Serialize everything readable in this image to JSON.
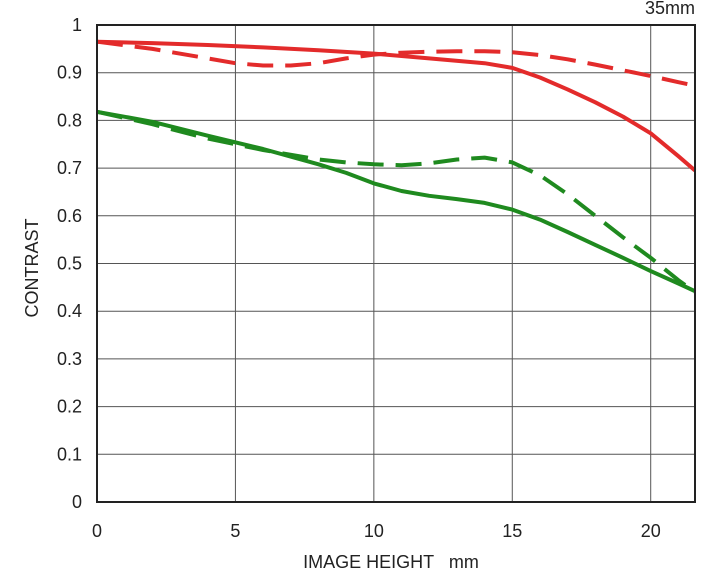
{
  "chart_data": {
    "type": "line",
    "title": "35mm",
    "xlabel": "IMAGE HEIGHT   mm",
    "ylabel": "CONTRAST",
    "xlim": [
      0,
      21.6
    ],
    "ylim": [
      0,
      1
    ],
    "x_ticks": [
      0,
      5,
      10,
      15,
      20
    ],
    "y_ticks": [
      0,
      0.1,
      0.2,
      0.3,
      0.4,
      0.5,
      0.6,
      0.7,
      0.8,
      0.9,
      1
    ],
    "y_tick_labels": [
      "0",
      "0.1",
      "0.2",
      "0.3",
      "0.4",
      "0.5",
      "0.6",
      "0.7",
      "0.8",
      "0.9",
      "1"
    ],
    "grid": true,
    "series": [
      {
        "color": "#e32b2b",
        "style": "solid",
        "x": [
          0,
          2,
          4,
          6,
          8,
          10,
          12,
          14,
          15,
          16,
          17,
          18,
          19,
          20,
          21,
          21.6
        ],
        "y": [
          0.965,
          0.962,
          0.958,
          0.953,
          0.947,
          0.94,
          0.93,
          0.92,
          0.91,
          0.89,
          0.865,
          0.838,
          0.808,
          0.773,
          0.725,
          0.695
        ]
      },
      {
        "color": "#e32b2b",
        "style": "dashed",
        "x": [
          0,
          2,
          4,
          5,
          6,
          7,
          8,
          9,
          10,
          11,
          12,
          13,
          14,
          15,
          16,
          17,
          18,
          19,
          20,
          21,
          21.6
        ],
        "y": [
          0.965,
          0.95,
          0.93,
          0.92,
          0.915,
          0.915,
          0.92,
          0.93,
          0.938,
          0.942,
          0.944,
          0.945,
          0.945,
          0.943,
          0.937,
          0.928,
          0.917,
          0.905,
          0.893,
          0.88,
          0.873
        ]
      },
      {
        "color": "#1f8a1f",
        "style": "solid",
        "x": [
          0,
          2,
          4,
          6,
          8,
          9,
          10,
          11,
          12,
          13,
          14,
          15,
          16,
          17,
          18,
          19,
          20,
          21,
          21.6
        ],
        "y": [
          0.818,
          0.797,
          0.768,
          0.74,
          0.708,
          0.69,
          0.668,
          0.652,
          0.642,
          0.635,
          0.627,
          0.613,
          0.592,
          0.566,
          0.539,
          0.512,
          0.484,
          0.458,
          0.442
        ]
      },
      {
        "color": "#1f8a1f",
        "style": "dashed",
        "x": [
          0,
          2,
          4,
          6,
          8,
          9,
          10,
          11,
          12,
          13,
          14,
          15,
          16,
          17,
          18,
          19,
          20,
          21,
          21.6
        ],
        "y": [
          0.818,
          0.792,
          0.762,
          0.738,
          0.718,
          0.712,
          0.708,
          0.706,
          0.71,
          0.718,
          0.722,
          0.712,
          0.685,
          0.645,
          0.6,
          0.555,
          0.512,
          0.465,
          0.44
        ]
      }
    ]
  }
}
